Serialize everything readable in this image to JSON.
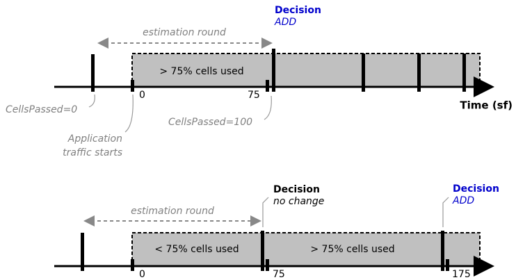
{
  "top": {
    "decision": "Decision",
    "decision_result": "ADD",
    "estimation": "estimation round",
    "segments": [
      "> 75% cells used"
    ],
    "ticks": [
      "0",
      "75"
    ],
    "cells_passed_start": "CellsPassed=0",
    "cells_passed_end": "CellsPassed=100",
    "traffic_lines": [
      "Application",
      "traffic starts"
    ],
    "axis_label": "Time (sf)"
  },
  "bottom": {
    "estimation": "estimation round",
    "decisions": [
      {
        "label": "Decision",
        "result": "no change"
      },
      {
        "label": "Decision",
        "result": "ADD"
      }
    ],
    "segments": [
      "< 75% cells used",
      "> 75% cells used"
    ],
    "ticks": [
      "0",
      "75",
      "175"
    ]
  }
}
